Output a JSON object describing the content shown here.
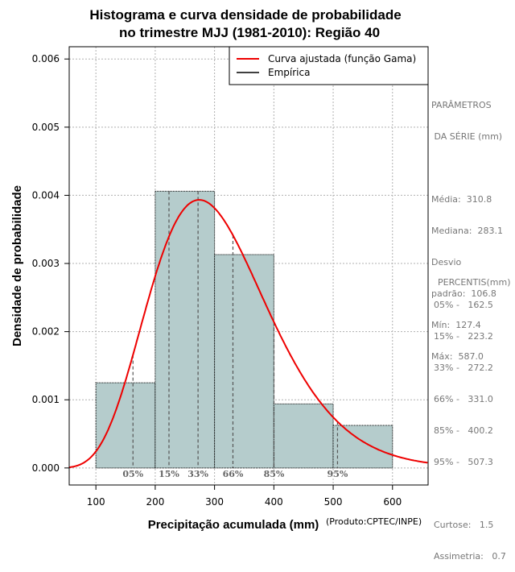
{
  "chart_data": {
    "type": "bar",
    "title_line1": "Histograma e curva densidade de probabilidade",
    "title_line2": "no trimestre MJJ (1981-2010): Região 40",
    "xlabel": "Precipitação acumulada (mm)",
    "ylabel": "Densidade de probabilidade",
    "xlim": [
      55,
      660
    ],
    "ylim": [
      -0.00025,
      0.00618
    ],
    "x_ticks": [
      100,
      200,
      300,
      400,
      500,
      600
    ],
    "y_ticks": [
      0.0,
      0.001,
      0.002,
      0.003,
      0.004,
      0.005,
      0.006
    ],
    "y_tick_labels": [
      "0.000",
      "0.001",
      "0.002",
      "0.003",
      "0.004",
      "0.005",
      "0.006"
    ],
    "bins": [
      {
        "start": 100,
        "end": 200,
        "density": 0.00125
      },
      {
        "start": 200,
        "end": 300,
        "density": 0.00406
      },
      {
        "start": 300,
        "end": 400,
        "density": 0.00313
      },
      {
        "start": 400,
        "end": 500,
        "density": 0.00094
      },
      {
        "start": 500,
        "end": 600,
        "density": 0.000625
      }
    ],
    "bar_color": "#b5cccc",
    "curve": {
      "label": "Curva ajustada (função Gama)",
      "distribution": "gamma",
      "mean": 310.8,
      "sd": 106.8,
      "color": "#ee0000"
    },
    "empirical_label": "Empírica",
    "percentiles": [
      {
        "label": "05%",
        "value": 162.5
      },
      {
        "label": "15%",
        "value": 223.2
      },
      {
        "label": "33%",
        "value": 272.2
      },
      {
        "label": "66%",
        "value": 331.0
      },
      {
        "label": "85%",
        "value": 400.2
      },
      {
        "label": "95%",
        "value": 507.3
      }
    ],
    "grid": true,
    "legend_position": "top-right",
    "credit": "(Produto:CPTEC/INPE)"
  },
  "parameters": {
    "heading_line1": "PARÂMETROS",
    "heading_line2": " DA SÉRIE",
    "heading_unit": "(mm)",
    "lines": [
      "Média:  310.8",
      "Mediana:  283.1",
      "Desvio",
      "padrão:  106.8",
      "Mín:  127.4",
      "Máx:  587.0"
    ]
  },
  "percentiles_panel": {
    "heading": "PERCENTIS(mm)",
    "lines": [
      "05% -   162.5",
      "15% -   223.2",
      "33% -   272.2",
      "66% -   331.0",
      "85% -   400.2",
      "95% -   507.3"
    ],
    "stats": [
      "Curtose:   1.5",
      "Assimetria:   0.7"
    ]
  }
}
